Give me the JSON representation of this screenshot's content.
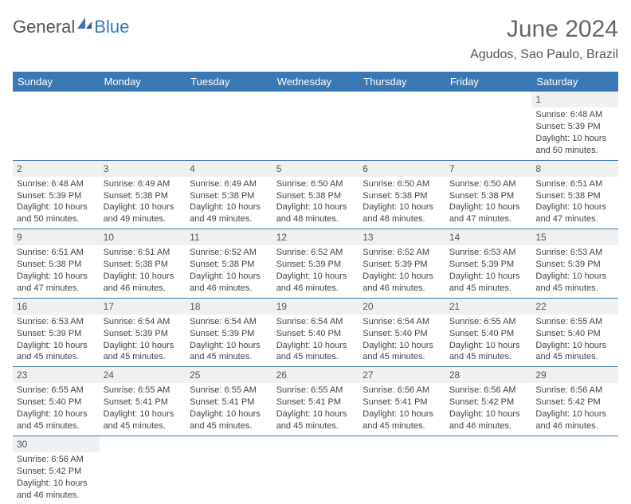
{
  "logo": {
    "text1": "General",
    "text2": "Blue",
    "icon_color": "#3a78b5"
  },
  "title": "June 2024",
  "location": "Agudos, Sao Paulo, Brazil",
  "colors": {
    "header_bg": "#3a78b5",
    "header_text": "#ffffff",
    "daynum_bg": "#f0f0f0",
    "border": "#3a78b5"
  },
  "weekdays": [
    "Sunday",
    "Monday",
    "Tuesday",
    "Wednesday",
    "Thursday",
    "Friday",
    "Saturday"
  ],
  "weeks": [
    [
      {
        "empty": true
      },
      {
        "empty": true
      },
      {
        "empty": true
      },
      {
        "empty": true
      },
      {
        "empty": true
      },
      {
        "empty": true
      },
      {
        "n": "1",
        "sunrise": "Sunrise: 6:48 AM",
        "sunset": "Sunset: 5:39 PM",
        "daylight": "Daylight: 10 hours and 50 minutes."
      }
    ],
    [
      {
        "n": "2",
        "sunrise": "Sunrise: 6:48 AM",
        "sunset": "Sunset: 5:39 PM",
        "daylight": "Daylight: 10 hours and 50 minutes."
      },
      {
        "n": "3",
        "sunrise": "Sunrise: 6:49 AM",
        "sunset": "Sunset: 5:38 PM",
        "daylight": "Daylight: 10 hours and 49 minutes."
      },
      {
        "n": "4",
        "sunrise": "Sunrise: 6:49 AM",
        "sunset": "Sunset: 5:38 PM",
        "daylight": "Daylight: 10 hours and 49 minutes."
      },
      {
        "n": "5",
        "sunrise": "Sunrise: 6:50 AM",
        "sunset": "Sunset: 5:38 PM",
        "daylight": "Daylight: 10 hours and 48 minutes."
      },
      {
        "n": "6",
        "sunrise": "Sunrise: 6:50 AM",
        "sunset": "Sunset: 5:38 PM",
        "daylight": "Daylight: 10 hours and 48 minutes."
      },
      {
        "n": "7",
        "sunrise": "Sunrise: 6:50 AM",
        "sunset": "Sunset: 5:38 PM",
        "daylight": "Daylight: 10 hours and 47 minutes."
      },
      {
        "n": "8",
        "sunrise": "Sunrise: 6:51 AM",
        "sunset": "Sunset: 5:38 PM",
        "daylight": "Daylight: 10 hours and 47 minutes."
      }
    ],
    [
      {
        "n": "9",
        "sunrise": "Sunrise: 6:51 AM",
        "sunset": "Sunset: 5:38 PM",
        "daylight": "Daylight: 10 hours and 47 minutes."
      },
      {
        "n": "10",
        "sunrise": "Sunrise: 6:51 AM",
        "sunset": "Sunset: 5:38 PM",
        "daylight": "Daylight: 10 hours and 46 minutes."
      },
      {
        "n": "11",
        "sunrise": "Sunrise: 6:52 AM",
        "sunset": "Sunset: 5:38 PM",
        "daylight": "Daylight: 10 hours and 46 minutes."
      },
      {
        "n": "12",
        "sunrise": "Sunrise: 6:52 AM",
        "sunset": "Sunset: 5:39 PM",
        "daylight": "Daylight: 10 hours and 46 minutes."
      },
      {
        "n": "13",
        "sunrise": "Sunrise: 6:52 AM",
        "sunset": "Sunset: 5:39 PM",
        "daylight": "Daylight: 10 hours and 46 minutes."
      },
      {
        "n": "14",
        "sunrise": "Sunrise: 6:53 AM",
        "sunset": "Sunset: 5:39 PM",
        "daylight": "Daylight: 10 hours and 45 minutes."
      },
      {
        "n": "15",
        "sunrise": "Sunrise: 6:53 AM",
        "sunset": "Sunset: 5:39 PM",
        "daylight": "Daylight: 10 hours and 45 minutes."
      }
    ],
    [
      {
        "n": "16",
        "sunrise": "Sunrise: 6:53 AM",
        "sunset": "Sunset: 5:39 PM",
        "daylight": "Daylight: 10 hours and 45 minutes."
      },
      {
        "n": "17",
        "sunrise": "Sunrise: 6:54 AM",
        "sunset": "Sunset: 5:39 PM",
        "daylight": "Daylight: 10 hours and 45 minutes."
      },
      {
        "n": "18",
        "sunrise": "Sunrise: 6:54 AM",
        "sunset": "Sunset: 5:39 PM",
        "daylight": "Daylight: 10 hours and 45 minutes."
      },
      {
        "n": "19",
        "sunrise": "Sunrise: 6:54 AM",
        "sunset": "Sunset: 5:40 PM",
        "daylight": "Daylight: 10 hours and 45 minutes."
      },
      {
        "n": "20",
        "sunrise": "Sunrise: 6:54 AM",
        "sunset": "Sunset: 5:40 PM",
        "daylight": "Daylight: 10 hours and 45 minutes."
      },
      {
        "n": "21",
        "sunrise": "Sunrise: 6:55 AM",
        "sunset": "Sunset: 5:40 PM",
        "daylight": "Daylight: 10 hours and 45 minutes."
      },
      {
        "n": "22",
        "sunrise": "Sunrise: 6:55 AM",
        "sunset": "Sunset: 5:40 PM",
        "daylight": "Daylight: 10 hours and 45 minutes."
      }
    ],
    [
      {
        "n": "23",
        "sunrise": "Sunrise: 6:55 AM",
        "sunset": "Sunset: 5:40 PM",
        "daylight": "Daylight: 10 hours and 45 minutes."
      },
      {
        "n": "24",
        "sunrise": "Sunrise: 6:55 AM",
        "sunset": "Sunset: 5:41 PM",
        "daylight": "Daylight: 10 hours and 45 minutes."
      },
      {
        "n": "25",
        "sunrise": "Sunrise: 6:55 AM",
        "sunset": "Sunset: 5:41 PM",
        "daylight": "Daylight: 10 hours and 45 minutes."
      },
      {
        "n": "26",
        "sunrise": "Sunrise: 6:55 AM",
        "sunset": "Sunset: 5:41 PM",
        "daylight": "Daylight: 10 hours and 45 minutes."
      },
      {
        "n": "27",
        "sunrise": "Sunrise: 6:56 AM",
        "sunset": "Sunset: 5:41 PM",
        "daylight": "Daylight: 10 hours and 45 minutes."
      },
      {
        "n": "28",
        "sunrise": "Sunrise: 6:56 AM",
        "sunset": "Sunset: 5:42 PM",
        "daylight": "Daylight: 10 hours and 46 minutes."
      },
      {
        "n": "29",
        "sunrise": "Sunrise: 6:56 AM",
        "sunset": "Sunset: 5:42 PM",
        "daylight": "Daylight: 10 hours and 46 minutes."
      }
    ],
    [
      {
        "n": "30",
        "sunrise": "Sunrise: 6:56 AM",
        "sunset": "Sunset: 5:42 PM",
        "daylight": "Daylight: 10 hours and 46 minutes."
      },
      {
        "empty": true
      },
      {
        "empty": true
      },
      {
        "empty": true
      },
      {
        "empty": true
      },
      {
        "empty": true
      },
      {
        "empty": true
      }
    ]
  ]
}
